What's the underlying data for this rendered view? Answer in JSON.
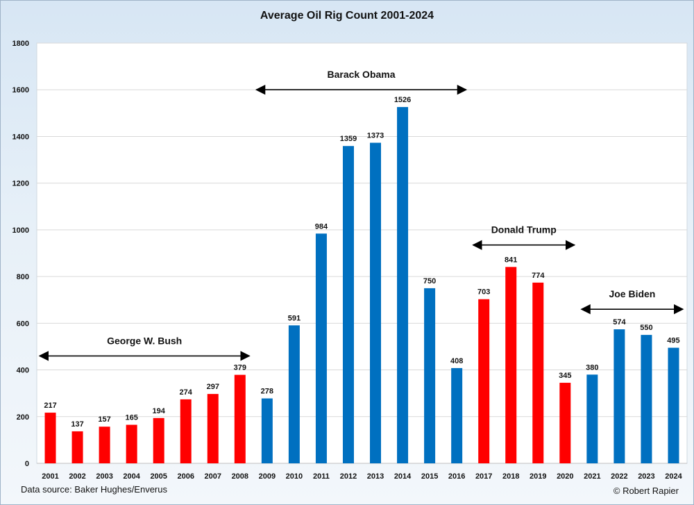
{
  "chart_data": {
    "type": "bar",
    "title": "Average Oil Rig Count 2001-2024",
    "xlabel": "",
    "ylabel": "",
    "ylim": [
      0,
      1800
    ],
    "yticks": [
      0,
      200,
      400,
      600,
      800,
      1000,
      1200,
      1400,
      1600,
      1800
    ],
    "grid": true,
    "legend": "none",
    "categories": [
      "2001",
      "2002",
      "2003",
      "2004",
      "2005",
      "2006",
      "2007",
      "2008",
      "2009",
      "2010",
      "2011",
      "2012",
      "2013",
      "2014",
      "2015",
      "2016",
      "2017",
      "2018",
      "2019",
      "2020",
      "2021",
      "2022",
      "2023",
      "2024"
    ],
    "values": [
      217,
      137,
      157,
      165,
      194,
      274,
      297,
      379,
      278,
      591,
      984,
      1359,
      1373,
      1526,
      750,
      408,
      703,
      841,
      774,
      345,
      380,
      574,
      550,
      495
    ],
    "bar_colors": [
      "#ff0000",
      "#ff0000",
      "#ff0000",
      "#ff0000",
      "#ff0000",
      "#ff0000",
      "#ff0000",
      "#ff0000",
      "#0070c0",
      "#0070c0",
      "#0070c0",
      "#0070c0",
      "#0070c0",
      "#0070c0",
      "#0070c0",
      "#0070c0",
      "#ff0000",
      "#ff0000",
      "#ff0000",
      "#ff0000",
      "#0070c0",
      "#0070c0",
      "#0070c0",
      "#0070c0"
    ],
    "annotations": [
      {
        "text": "George W. Bush",
        "from": "2001",
        "to": "2008",
        "y": 460
      },
      {
        "text": "Barack Obama",
        "from": "2009",
        "to": "2016",
        "y": 1600
      },
      {
        "text": "Donald Trump",
        "from": "2017",
        "to": "2020",
        "y": 935
      },
      {
        "text": "Joe Biden",
        "from": "2021",
        "to": "2024",
        "y": 660
      }
    ]
  },
  "footer": {
    "source": "Data source: Baker Hughes/Enverus",
    "credit": "© Robert Rapier"
  },
  "colors": {
    "republican": "#ff0000",
    "democrat": "#0070c0",
    "grid": "#d9d9d9"
  }
}
